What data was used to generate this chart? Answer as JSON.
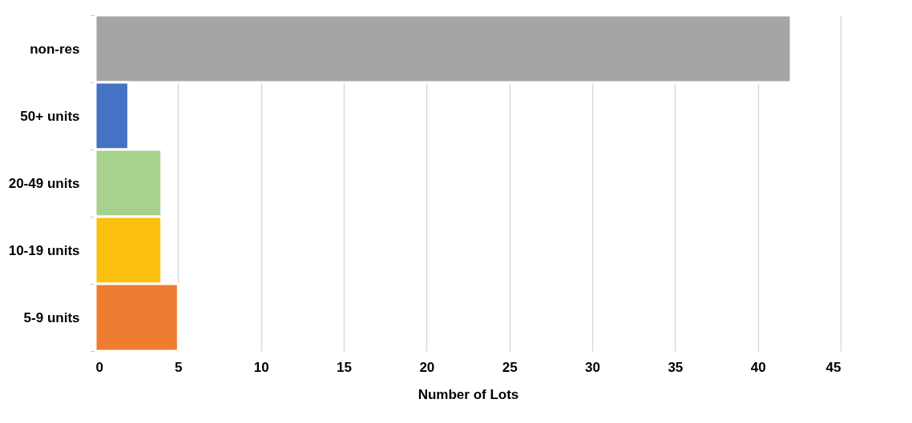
{
  "chart_data": {
    "type": "bar",
    "orientation": "horizontal",
    "xlabel": "Number of Lots",
    "categories": [
      "non-res",
      "50+ units",
      "20-49 units",
      "10-19 units",
      "5-9 units"
    ],
    "values": [
      42,
      2,
      4,
      4,
      5
    ],
    "colors": [
      "#a5a5a5",
      "#4472c4",
      "#a9d18e",
      "#fbc010",
      "#ed7d31"
    ],
    "xlim": [
      0,
      45
    ],
    "xticks": [
      0,
      5,
      10,
      15,
      20,
      25,
      30,
      35,
      40,
      45
    ],
    "grid": "x",
    "legend": false
  }
}
